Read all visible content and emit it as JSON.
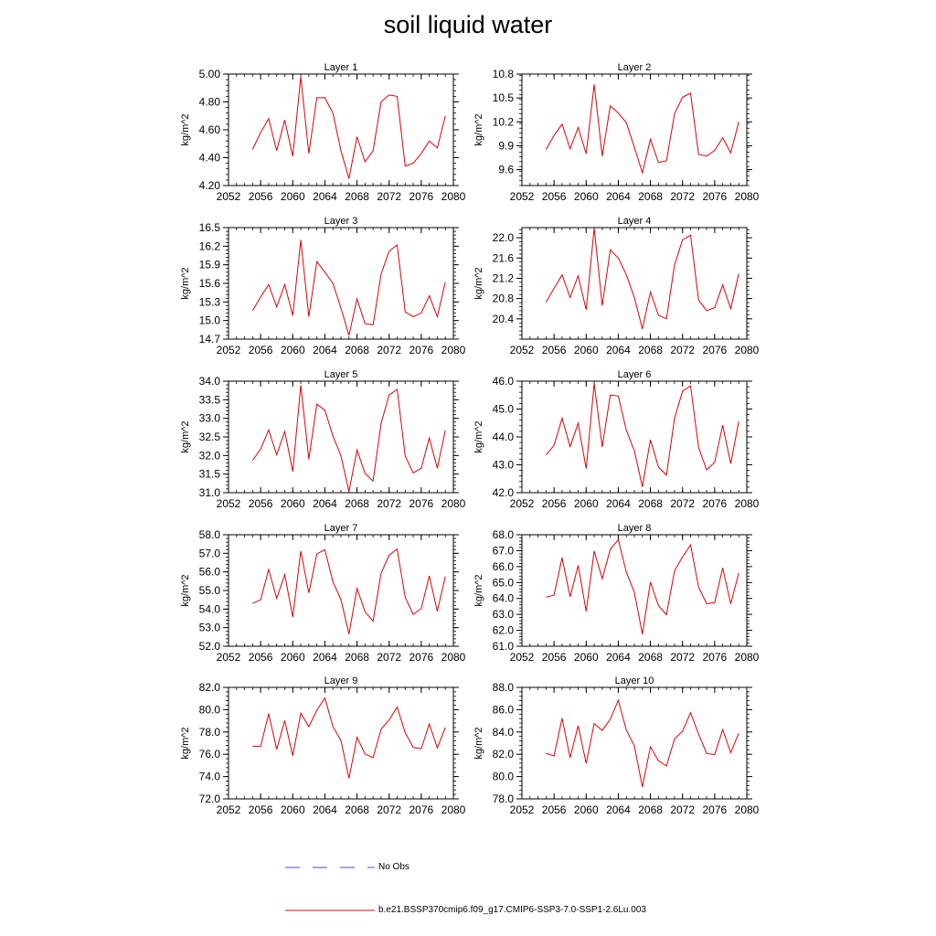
{
  "figure": {
    "title": "soil liquid water"
  },
  "legend": {
    "obs_label": "No Obs",
    "obs_color": "#4a4ad0",
    "model_label": "b.e21.BSSP370cmip6.f09_g17.CMIP6-SSP3-7.0-SSP1-2.6Lu.003",
    "model_color": "#e00000"
  },
  "chart_data": [
    {
      "type": "line",
      "title": "Layer 1",
      "ylabel": "kg/m^2",
      "xlim": [
        2052,
        2080
      ],
      "xticks": [
        2052,
        2056,
        2060,
        2064,
        2068,
        2072,
        2076,
        2080
      ],
      "ylim": [
        4.2,
        5.0
      ],
      "yticks": [
        "4.20",
        "4.40",
        "4.60",
        "4.80",
        "5.00"
      ],
      "x": [
        2055,
        2056,
        2057,
        2058,
        2059,
        2060,
        2061,
        2062,
        2063,
        2064,
        2065,
        2066,
        2067,
        2068,
        2069,
        2070,
        2071,
        2072,
        2073,
        2074,
        2075,
        2076,
        2077,
        2078,
        2079
      ],
      "series": [
        {
          "values": [
            4.46,
            4.58,
            4.68,
            4.45,
            4.67,
            4.41,
            4.98,
            4.43,
            4.83,
            4.83,
            4.72,
            4.45,
            4.25,
            4.55,
            4.37,
            4.45,
            4.8,
            4.85,
            4.84,
            4.34,
            4.36,
            4.43,
            4.52,
            4.47,
            4.7
          ]
        }
      ]
    },
    {
      "type": "line",
      "title": "Layer 2",
      "ylabel": "kg/m^2",
      "xlim": [
        2052,
        2080
      ],
      "xticks": [
        2052,
        2056,
        2060,
        2064,
        2068,
        2072,
        2076,
        2080
      ],
      "ylim": [
        9.4,
        10.8
      ],
      "yticks": [
        "9.6",
        "9.9",
        "10.2",
        "10.5",
        "10.8"
      ],
      "x": [
        2055,
        2056,
        2057,
        2058,
        2059,
        2060,
        2061,
        2062,
        2063,
        2064,
        2065,
        2066,
        2067,
        2068,
        2069,
        2070,
        2071,
        2072,
        2073,
        2074,
        2075,
        2076,
        2077,
        2078,
        2079
      ],
      "series": [
        {
          "values": [
            9.85,
            10.03,
            10.17,
            9.86,
            10.13,
            9.8,
            10.67,
            9.77,
            10.4,
            10.31,
            10.19,
            9.88,
            9.56,
            9.98,
            9.69,
            9.71,
            10.3,
            10.51,
            10.56,
            9.79,
            9.77,
            9.84,
            10.0,
            9.81,
            10.2
          ]
        }
      ]
    },
    {
      "type": "line",
      "title": "Layer 3",
      "ylabel": "kg/m^2",
      "xlim": [
        2052,
        2080
      ],
      "xticks": [
        2052,
        2056,
        2060,
        2064,
        2068,
        2072,
        2076,
        2080
      ],
      "ylim": [
        14.7,
        16.5
      ],
      "yticks": [
        "14.7",
        "15.0",
        "15.3",
        "15.6",
        "15.9",
        "16.2",
        "16.5"
      ],
      "x": [
        2055,
        2056,
        2057,
        2058,
        2059,
        2060,
        2061,
        2062,
        2063,
        2064,
        2065,
        2066,
        2067,
        2068,
        2069,
        2070,
        2071,
        2072,
        2073,
        2074,
        2075,
        2076,
        2077,
        2078,
        2079
      ],
      "series": [
        {
          "values": [
            15.16,
            15.38,
            15.58,
            15.22,
            15.58,
            15.08,
            16.3,
            15.06,
            15.95,
            15.78,
            15.6,
            15.2,
            14.76,
            15.35,
            14.95,
            14.93,
            15.75,
            16.12,
            16.22,
            15.14,
            15.06,
            15.12,
            15.4,
            15.06,
            15.62
          ]
        }
      ]
    },
    {
      "type": "line",
      "title": "Layer 4",
      "ylabel": "kg/m^2",
      "xlim": [
        2052,
        2080
      ],
      "xticks": [
        2052,
        2056,
        2060,
        2064,
        2068,
        2072,
        2076,
        2080
      ],
      "ylim": [
        20.0,
        22.2
      ],
      "yticks": [
        "20.4",
        "20.8",
        "21.2",
        "21.6",
        "22.0"
      ],
      "x": [
        2055,
        2056,
        2057,
        2058,
        2059,
        2060,
        2061,
        2062,
        2063,
        2064,
        2065,
        2066,
        2067,
        2068,
        2069,
        2070,
        2071,
        2072,
        2073,
        2074,
        2075,
        2076,
        2077,
        2078,
        2079
      ],
      "series": [
        {
          "values": [
            20.73,
            21.0,
            21.27,
            20.82,
            21.25,
            20.58,
            22.19,
            20.66,
            21.76,
            21.6,
            21.27,
            20.82,
            20.2,
            20.93,
            20.47,
            20.4,
            21.46,
            21.96,
            22.05,
            20.77,
            20.56,
            20.62,
            21.07,
            20.6,
            21.29
          ]
        }
      ]
    },
    {
      "type": "line",
      "title": "Layer 5",
      "ylabel": "kg/m^2",
      "xlim": [
        2052,
        2080
      ],
      "xticks": [
        2052,
        2056,
        2060,
        2064,
        2068,
        2072,
        2076,
        2080
      ],
      "ylim": [
        31.0,
        34.0
      ],
      "yticks": [
        "31.0",
        "31.5",
        "32.0",
        "32.5",
        "33.0",
        "33.5",
        "34.0"
      ],
      "x": [
        2055,
        2056,
        2057,
        2058,
        2059,
        2060,
        2061,
        2062,
        2063,
        2064,
        2065,
        2066,
        2067,
        2068,
        2069,
        2070,
        2071,
        2072,
        2073,
        2074,
        2075,
        2076,
        2077,
        2078,
        2079
      ],
      "series": [
        {
          "values": [
            31.87,
            32.17,
            32.69,
            32.02,
            32.65,
            31.57,
            33.89,
            31.9,
            33.38,
            33.22,
            32.53,
            31.99,
            31.03,
            32.15,
            31.52,
            31.31,
            32.87,
            33.63,
            33.78,
            31.99,
            31.53,
            31.66,
            32.47,
            31.66,
            32.68
          ]
        }
      ]
    },
    {
      "type": "line",
      "title": "Layer 6",
      "ylabel": "kg/m^2",
      "xlim": [
        2052,
        2080
      ],
      "xticks": [
        2052,
        2056,
        2060,
        2064,
        2068,
        2072,
        2076,
        2080
      ],
      "ylim": [
        42.0,
        46.0
      ],
      "yticks": [
        "42.0",
        "43.0",
        "44.0",
        "45.0",
        "46.0"
      ],
      "x": [
        2055,
        2056,
        2057,
        2058,
        2059,
        2060,
        2061,
        2062,
        2063,
        2064,
        2065,
        2066,
        2067,
        2068,
        2069,
        2070,
        2071,
        2072,
        2073,
        2074,
        2075,
        2076,
        2077,
        2078,
        2079
      ],
      "series": [
        {
          "values": [
            43.35,
            43.7,
            44.67,
            43.65,
            44.49,
            42.86,
            45.92,
            43.64,
            45.5,
            45.47,
            44.24,
            43.5,
            42.21,
            43.9,
            42.92,
            42.63,
            44.66,
            45.64,
            45.83,
            43.62,
            42.82,
            43.09,
            44.42,
            43.04,
            44.56
          ]
        }
      ]
    },
    {
      "type": "line",
      "title": "Layer 7",
      "ylabel": "kg/m^2",
      "xlim": [
        2052,
        2080
      ],
      "xticks": [
        2052,
        2056,
        2060,
        2064,
        2068,
        2072,
        2076,
        2080
      ],
      "ylim": [
        52.0,
        58.0
      ],
      "yticks": [
        "52.0",
        "53.0",
        "54.0",
        "55.0",
        "56.0",
        "57.0",
        "58.0"
      ],
      "x": [
        2055,
        2056,
        2057,
        2058,
        2059,
        2060,
        2061,
        2062,
        2063,
        2064,
        2065,
        2066,
        2067,
        2068,
        2069,
        2070,
        2071,
        2072,
        2073,
        2074,
        2075,
        2076,
        2077,
        2078,
        2079
      ],
      "series": [
        {
          "values": [
            54.3,
            54.5,
            56.13,
            54.57,
            55.86,
            53.57,
            57.12,
            54.87,
            56.97,
            57.19,
            55.47,
            54.51,
            52.66,
            55.11,
            53.86,
            53.34,
            55.93,
            56.9,
            57.23,
            54.63,
            53.71,
            54.03,
            55.79,
            53.88,
            55.76
          ]
        }
      ]
    },
    {
      "type": "line",
      "title": "Layer 8",
      "ylabel": "kg/m^2",
      "xlim": [
        2052,
        2080
      ],
      "xticks": [
        2052,
        2056,
        2060,
        2064,
        2068,
        2072,
        2076,
        2080
      ],
      "ylim": [
        61.0,
        68.0
      ],
      "yticks": [
        "61.0",
        "62.0",
        "63.0",
        "64.0",
        "65.0",
        "66.0",
        "67.0",
        "68.0"
      ],
      "x": [
        2055,
        2056,
        2057,
        2058,
        2059,
        2060,
        2061,
        2062,
        2063,
        2064,
        2065,
        2066,
        2067,
        2068,
        2069,
        2070,
        2071,
        2072,
        2073,
        2074,
        2075,
        2076,
        2077,
        2078,
        2079
      ],
      "series": [
        {
          "values": [
            64.08,
            64.21,
            66.55,
            64.1,
            66.08,
            63.19,
            66.98,
            65.24,
            67.08,
            67.69,
            65.65,
            64.39,
            61.76,
            65.03,
            63.55,
            62.98,
            65.73,
            66.61,
            67.36,
            64.72,
            63.67,
            63.74,
            65.92,
            63.66,
            65.6
          ]
        }
      ]
    },
    {
      "type": "line",
      "title": "Layer 9",
      "ylabel": "kg/m^2",
      "xlim": [
        2052,
        2080
      ],
      "xticks": [
        2052,
        2056,
        2060,
        2064,
        2068,
        2072,
        2076,
        2080
      ],
      "ylim": [
        72.0,
        82.0
      ],
      "yticks": [
        "72.0",
        "74.0",
        "76.0",
        "78.0",
        "80.0",
        "82.0"
      ],
      "x": [
        2055,
        2056,
        2057,
        2058,
        2059,
        2060,
        2061,
        2062,
        2063,
        2064,
        2065,
        2066,
        2067,
        2068,
        2069,
        2070,
        2071,
        2072,
        2073,
        2074,
        2075,
        2076,
        2077,
        2078,
        2079
      ],
      "series": [
        {
          "values": [
            76.72,
            76.7,
            79.64,
            76.45,
            79.02,
            75.87,
            79.68,
            78.48,
            79.95,
            81.05,
            78.49,
            77.24,
            73.84,
            77.53,
            76.03,
            75.7,
            78.24,
            79.08,
            80.23,
            77.93,
            76.62,
            76.5,
            78.72,
            76.57,
            78.41
          ]
        }
      ]
    },
    {
      "type": "line",
      "title": "Layer 10",
      "ylabel": "kg/m^2",
      "xlim": [
        2052,
        2080
      ],
      "xticks": [
        2052,
        2056,
        2060,
        2064,
        2068,
        2072,
        2076,
        2080
      ],
      "ylim": [
        78.0,
        88.0
      ],
      "yticks": [
        "78.0",
        "80.0",
        "82.0",
        "84.0",
        "86.0",
        "88.0"
      ],
      "x": [
        2055,
        2056,
        2057,
        2058,
        2059,
        2060,
        2061,
        2062,
        2063,
        2064,
        2065,
        2066,
        2067,
        2068,
        2069,
        2070,
        2071,
        2072,
        2073,
        2074,
        2075,
        2076,
        2077,
        2078,
        2079
      ],
      "series": [
        {
          "values": [
            82.09,
            81.84,
            85.24,
            81.7,
            84.56,
            81.18,
            84.75,
            84.14,
            85.15,
            86.85,
            84.18,
            82.75,
            79.07,
            82.68,
            81.41,
            80.95,
            83.38,
            84.07,
            85.73,
            83.8,
            82.07,
            81.97,
            84.21,
            82.14,
            83.89
          ]
        }
      ]
    }
  ]
}
